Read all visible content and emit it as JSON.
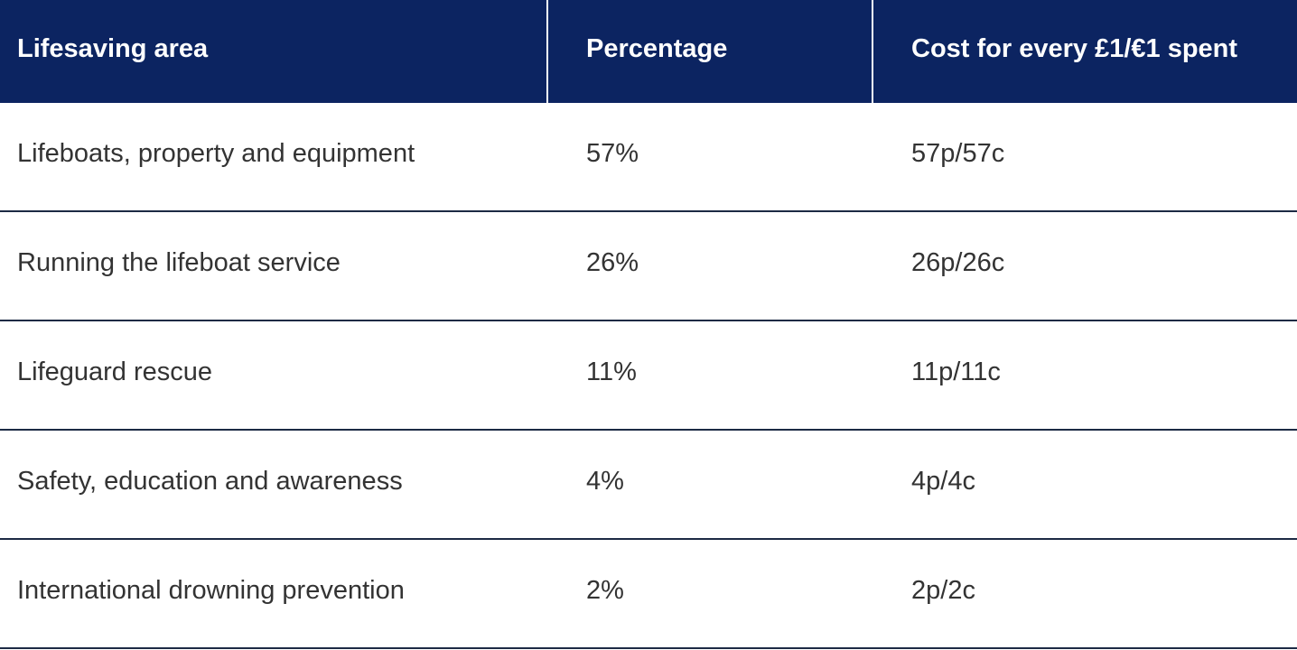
{
  "table": {
    "headers": [
      "Lifesaving area",
      "Percentage",
      "Cost for every £1/€1 spent"
    ],
    "rows": [
      [
        "Lifeboats, property and equipment",
        "57%",
        "57p/57c"
      ],
      [
        "Running the lifeboat service",
        "26%",
        "26p/26c"
      ],
      [
        "Lifeguard rescue",
        "11%",
        "11p/11c"
      ],
      [
        "Safety, education and awareness",
        "4%",
        "4p/4c"
      ],
      [
        "International drowning prevention",
        "2%",
        "2p/2c"
      ]
    ]
  },
  "colors": {
    "header_background": "#0c2461",
    "header_text": "#ffffff",
    "body_text": "#333333",
    "row_divider": "#1c2a44"
  }
}
